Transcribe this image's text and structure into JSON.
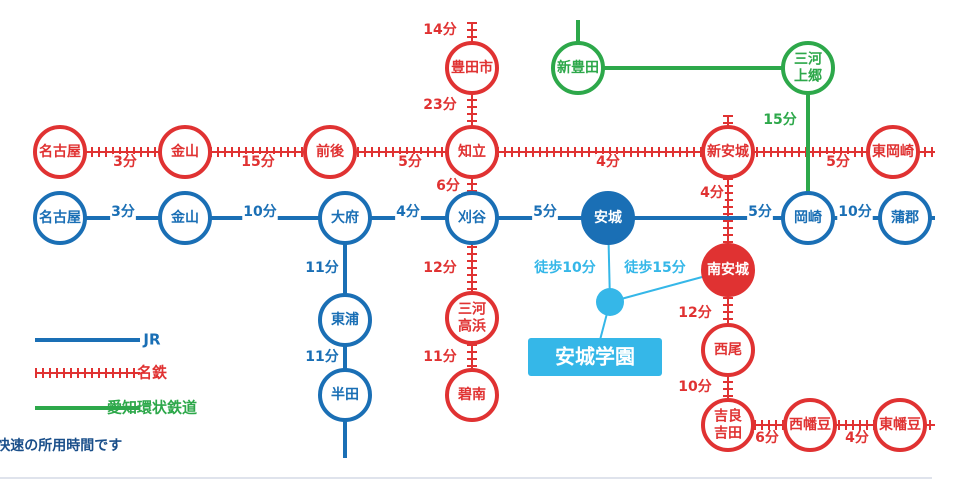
{
  "stations": [
    {
      "label": [
        "名古屋"
      ]
    },
    {
      "label": [
        "金山"
      ]
    },
    {
      "label": [
        "大府"
      ]
    },
    {
      "label": [
        "刈谷"
      ]
    },
    {
      "label": [
        "安城"
      ]
    },
    {
      "label": [
        "岡崎"
      ]
    },
    {
      "label": [
        "蒲郡"
      ]
    },
    {
      "label": [
        "東浦"
      ]
    },
    {
      "label": [
        "半田"
      ]
    },
    {
      "label": [
        "名古屋"
      ]
    },
    {
      "label": [
        "金山"
      ]
    },
    {
      "label": [
        "前後"
      ]
    },
    {
      "label": [
        "知立"
      ]
    },
    {
      "label": [
        "新安城"
      ]
    },
    {
      "label": [
        "東岡崎"
      ]
    },
    {
      "label": [
        "豊田市"
      ]
    },
    {
      "label": [
        "三河",
        "高浜"
      ]
    },
    {
      "label": [
        "碧南"
      ]
    },
    {
      "label": [
        "南安城"
      ]
    },
    {
      "label": [
        "西尾"
      ]
    },
    {
      "label": [
        "吉良",
        "吉田"
      ]
    },
    {
      "label": [
        "西幡豆"
      ]
    },
    {
      "label": [
        "東幡豆"
      ]
    },
    {
      "label": [
        "新豊田"
      ]
    },
    {
      "label": [
        "三河",
        "上郷"
      ]
    }
  ],
  "jr_times": [
    "3分",
    "10分",
    "4分",
    "5分",
    "5分",
    "10分",
    "11分",
    "11分"
  ],
  "meitetsu_times": [
    "3分",
    "15分",
    "5分",
    "4分",
    "5分",
    "14分",
    "23分",
    "6分",
    "12分",
    "11分",
    "4分",
    "12分",
    "10分",
    "6分",
    "4分"
  ],
  "aikan_times": [
    "15分"
  ],
  "walk_times": [
    "徒歩10分",
    "徒歩15分"
  ],
  "destination": "安城学園",
  "legend": [
    {
      "label": "JR"
    },
    {
      "label": "名鉄"
    },
    {
      "label": "愛知環状鉄道"
    }
  ],
  "note": "※ JRは快速の所用時間です"
}
